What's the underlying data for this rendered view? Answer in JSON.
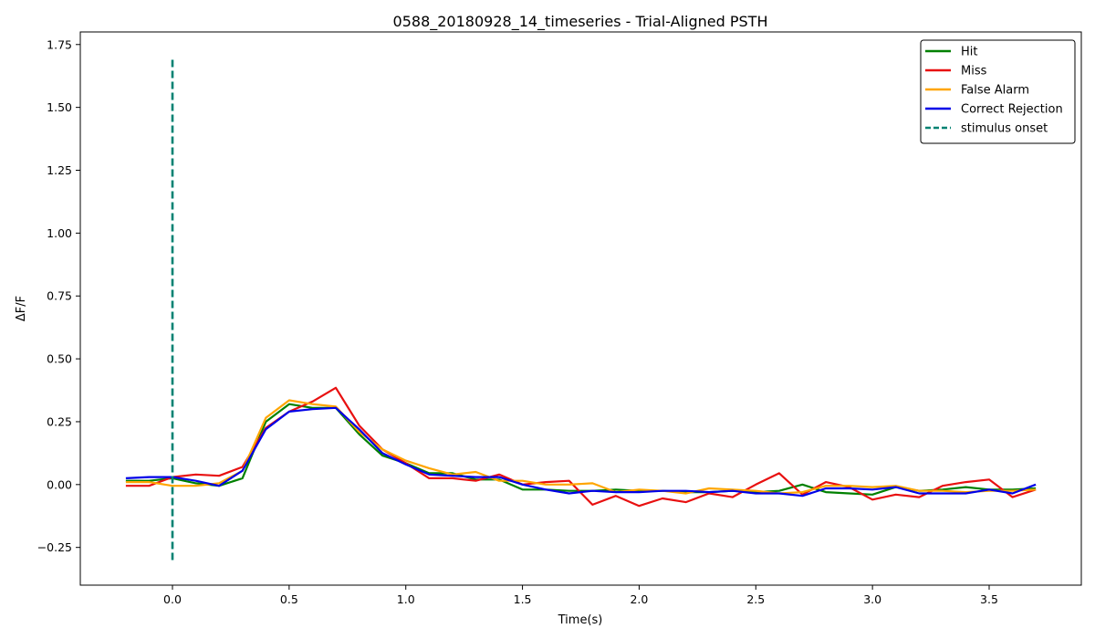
{
  "chart_data": {
    "type": "line",
    "title": "0588_20180928_14_timeseries - Trial-Aligned PSTH",
    "xlabel": "Time(s)",
    "ylabel": "ΔF/F",
    "xlim": [
      -0.395,
      3.895
    ],
    "ylim": [
      -0.4,
      1.8
    ],
    "xticks": [
      0.0,
      0.5,
      1.0,
      1.5,
      2.0,
      2.5,
      3.0,
      3.5
    ],
    "xtick_labels": [
      "0.0",
      "0.5",
      "1.0",
      "1.5",
      "2.0",
      "2.5",
      "3.0",
      "3.5"
    ],
    "yticks": [
      -0.25,
      0.0,
      0.25,
      0.5,
      0.75,
      1.0,
      1.25,
      1.5,
      1.75
    ],
    "ytick_labels": [
      "−0.25",
      "0.00",
      "0.25",
      "0.50",
      "0.75",
      "1.00",
      "1.25",
      "1.50",
      "1.75"
    ],
    "grid": false,
    "legend_position": "top-right",
    "x": [
      -0.2,
      -0.1,
      0.0,
      0.1,
      0.2,
      0.3,
      0.4,
      0.5,
      0.6,
      0.7,
      0.8,
      0.9,
      1.0,
      1.1,
      1.2,
      1.3,
      1.4,
      1.5,
      1.6,
      1.7,
      1.8,
      1.9,
      2.0,
      2.1,
      2.2,
      2.3,
      2.4,
      2.5,
      2.6,
      2.7,
      2.8,
      2.9,
      3.0,
      3.1,
      3.2,
      3.3,
      3.4,
      3.5,
      3.6,
      3.7
    ],
    "series": [
      {
        "name": "Hit",
        "color": "#008000",
        "style": "solid",
        "values": [
          0.015,
          0.015,
          0.025,
          0.005,
          -0.005,
          0.025,
          0.25,
          0.32,
          0.305,
          0.305,
          0.2,
          0.115,
          0.085,
          0.045,
          0.045,
          0.02,
          0.02,
          -0.02,
          -0.02,
          -0.025,
          -0.025,
          -0.02,
          -0.025,
          -0.025,
          -0.03,
          -0.03,
          -0.025,
          -0.03,
          -0.025,
          0.0,
          -0.03,
          -0.035,
          -0.04,
          -0.01,
          -0.025,
          -0.02,
          -0.01,
          -0.02,
          -0.02,
          -0.015
        ]
      },
      {
        "name": "Miss",
        "color": "#e81010",
        "style": "solid",
        "values": [
          -0.005,
          -0.005,
          0.03,
          0.04,
          0.035,
          0.07,
          0.225,
          0.29,
          0.33,
          0.385,
          0.235,
          0.14,
          0.085,
          0.025,
          0.025,
          0.015,
          0.04,
          0.0,
          0.01,
          0.015,
          -0.08,
          -0.045,
          -0.085,
          -0.055,
          -0.07,
          -0.035,
          -0.05,
          0.0,
          0.045,
          -0.04,
          0.01,
          -0.01,
          -0.06,
          -0.04,
          -0.05,
          -0.005,
          0.01,
          0.02,
          -0.05,
          -0.02
        ]
      },
      {
        "name": "False Alarm",
        "color": "#ffa500",
        "style": "solid",
        "values": [
          0.01,
          0.01,
          -0.005,
          -0.005,
          0.005,
          0.055,
          0.265,
          0.335,
          0.32,
          0.31,
          0.21,
          0.14,
          0.095,
          0.065,
          0.04,
          0.05,
          0.015,
          0.015,
          0.0,
          0.0,
          0.005,
          -0.03,
          -0.02,
          -0.025,
          -0.035,
          -0.015,
          -0.02,
          -0.025,
          -0.035,
          -0.03,
          -0.005,
          -0.005,
          -0.01,
          -0.005,
          -0.025,
          -0.025,
          -0.03,
          -0.025,
          -0.025,
          -0.02
        ]
      },
      {
        "name": "Correct Rejection",
        "color": "#0000e8",
        "style": "solid",
        "values": [
          0.025,
          0.03,
          0.03,
          0.015,
          -0.005,
          0.055,
          0.22,
          0.29,
          0.3,
          0.305,
          0.22,
          0.125,
          0.08,
          0.04,
          0.035,
          0.03,
          0.03,
          0.0,
          -0.02,
          -0.035,
          -0.025,
          -0.03,
          -0.03,
          -0.025,
          -0.025,
          -0.03,
          -0.025,
          -0.035,
          -0.035,
          -0.045,
          -0.015,
          -0.015,
          -0.02,
          -0.01,
          -0.035,
          -0.035,
          -0.035,
          -0.02,
          -0.035,
          0.0
        ]
      }
    ],
    "annotations": [
      {
        "name": "stimulus onset",
        "type": "vline",
        "x": 0.0,
        "y_range": [
          -0.3,
          1.7
        ],
        "color": "#008272",
        "style": "dashed"
      }
    ]
  }
}
